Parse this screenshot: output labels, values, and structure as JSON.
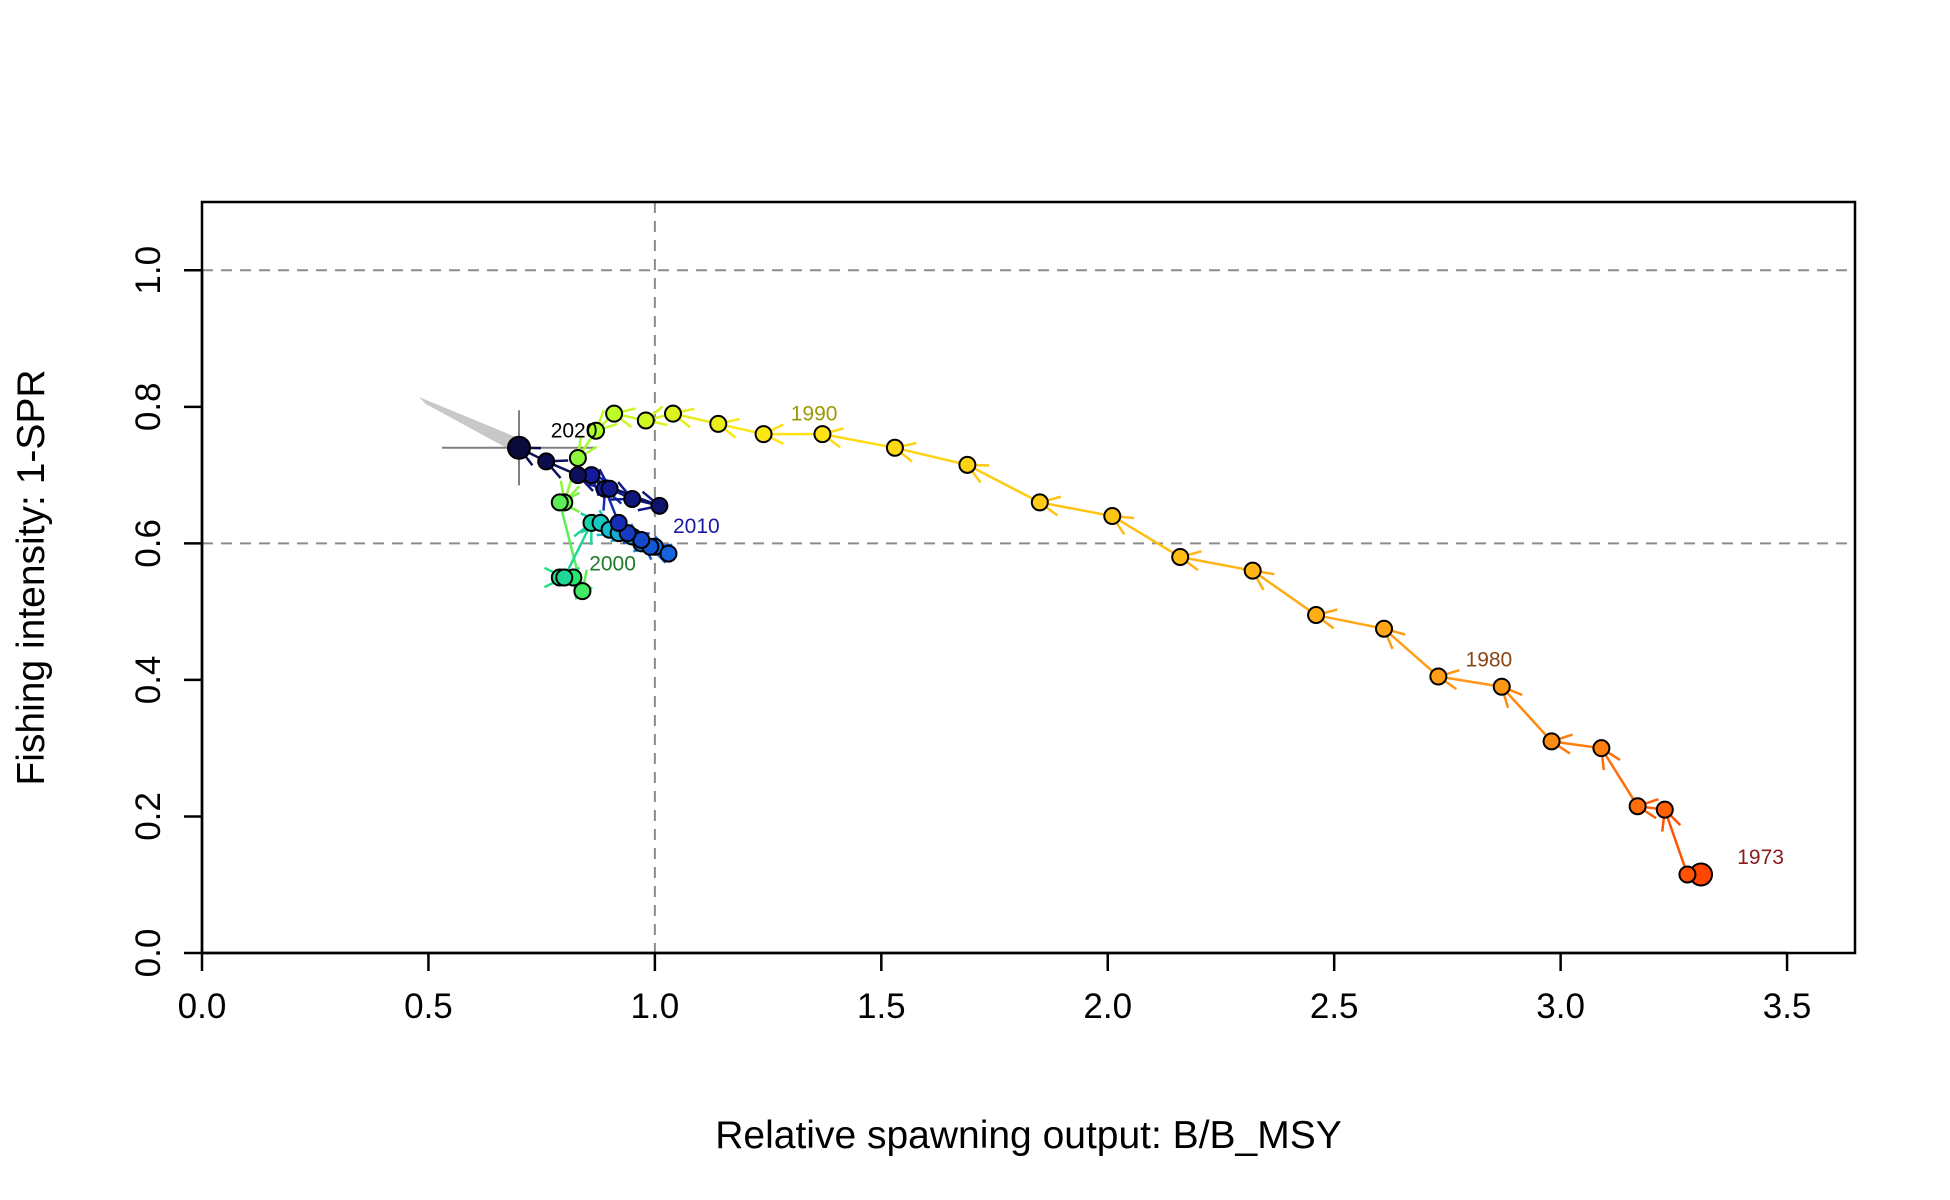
{
  "chart_data": {
    "type": "scatter",
    "title": "",
    "xlabel": "Relative spawning output: B/B_MSY",
    "ylabel": "Fishing intensity: 1-SPR",
    "xlim": [
      0.0,
      3.65
    ],
    "ylim": [
      0.0,
      1.1
    ],
    "x_ticks": [
      "0.0",
      "0.5",
      "1.0",
      "1.5",
      "2.0",
      "2.5",
      "3.0",
      "3.5"
    ],
    "y_ticks": [
      "0.0",
      "0.2",
      "0.4",
      "0.6",
      "0.8",
      "1.0"
    ],
    "reference_lines": {
      "x": 1.0,
      "y": [
        0.6,
        1.0
      ]
    },
    "year_labels": [
      {
        "text": "1973",
        "x": 3.39,
        "y": 0.13,
        "color": "#8B1A1A"
      },
      {
        "text": "1980",
        "x": 2.79,
        "y": 0.42,
        "color": "#8B4513"
      },
      {
        "text": "1990",
        "x": 1.3,
        "y": 0.78,
        "color": "#9A9A00"
      },
      {
        "text": "2000",
        "x": 0.855,
        "y": 0.56,
        "color": "#1F7A2A"
      },
      {
        "text": "2010",
        "x": 1.04,
        "y": 0.615,
        "color": "#1A1AA0"
      },
      {
        "text": "2020",
        "x": 0.77,
        "y": 0.755,
        "color": "#000000"
      }
    ],
    "series": [
      {
        "years": [
          1973,
          1974,
          1975,
          1976,
          1977,
          1978,
          1979,
          1980,
          1981,
          1982,
          1983,
          1984,
          1985,
          1986,
          1987,
          1988,
          1989,
          1990,
          1991,
          1992,
          1993,
          1994,
          1995,
          1996,
          1997,
          1998,
          1999,
          2000,
          2001,
          2002,
          2003,
          2004,
          2005,
          2006,
          2007,
          2008,
          2009,
          2010,
          2011,
          2012,
          2013,
          2014,
          2015,
          2016,
          2017,
          2018,
          2019,
          2020,
          2021,
          2022
        ],
        "x": [
          3.31,
          3.28,
          3.23,
          3.17,
          3.09,
          2.98,
          2.87,
          2.73,
          2.61,
          2.46,
          2.32,
          2.16,
          2.01,
          1.85,
          1.69,
          1.53,
          1.37,
          1.24,
          1.14,
          1.04,
          0.98,
          0.91,
          0.87,
          0.83,
          0.8,
          0.79,
          0.84,
          0.82,
          0.79,
          0.8,
          0.86,
          0.88,
          0.9,
          0.92,
          0.95,
          0.97,
          1.0,
          1.03,
          0.99,
          0.97,
          0.94,
          0.92,
          0.89,
          0.86,
          0.9,
          0.95,
          1.01,
          0.83,
          0.76,
          0.7
        ],
        "y": [
          0.115,
          0.115,
          0.21,
          0.215,
          0.3,
          0.31,
          0.39,
          0.405,
          0.475,
          0.495,
          0.56,
          0.58,
          0.64,
          0.66,
          0.715,
          0.74,
          0.76,
          0.76,
          0.775,
          0.79,
          0.78,
          0.79,
          0.765,
          0.725,
          0.66,
          0.66,
          0.53,
          0.55,
          0.55,
          0.55,
          0.63,
          0.63,
          0.62,
          0.615,
          0.61,
          0.6,
          0.595,
          0.585,
          0.595,
          0.605,
          0.615,
          0.63,
          0.68,
          0.7,
          0.68,
          0.665,
          0.655,
          0.7,
          0.72,
          0.74
        ]
      }
    ],
    "uncertainty": {
      "point": {
        "x": 0.7,
        "y": 0.74
      },
      "x_range": [
        0.53,
        0.87
      ],
      "y_range": [
        0.685,
        0.795
      ],
      "cloud_from": {
        "x": 0.49,
        "y": 0.81
      },
      "color": "#C8C8C8"
    },
    "colors": {
      "reference_line": "#8C8C8C",
      "axis": "#000000",
      "point_outline": "#000000"
    }
  }
}
